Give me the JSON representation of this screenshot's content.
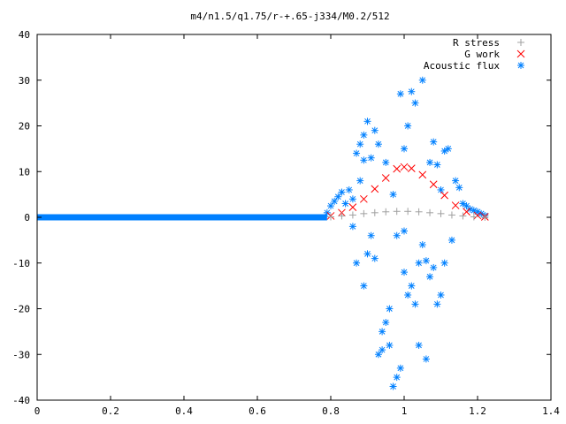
{
  "chart_data": {
    "type": "scatter",
    "title": "m4/n1.5/q1.75/r-+.65-j334/M0.2/512",
    "xlabel": "",
    "ylabel": "",
    "xlim": [
      0,
      1.4
    ],
    "ylim": [
      -40,
      40
    ],
    "x_ticks": [
      "0",
      "0.2",
      "0.4",
      "0.6",
      "0.8",
      "1",
      "1.2",
      "1.4"
    ],
    "y_ticks": [
      "40",
      "30",
      "20",
      "10",
      "0",
      "-10",
      "-20",
      "-30",
      "-40"
    ],
    "grid": false,
    "legend_position": "top-right",
    "series": [
      {
        "name": "R stress",
        "marker": "plus",
        "color": "#a0a0a0",
        "points": [
          [
            0.8,
            0.1
          ],
          [
            0.83,
            0.3
          ],
          [
            0.86,
            0.5
          ],
          [
            0.89,
            0.8
          ],
          [
            0.92,
            1.0
          ],
          [
            0.95,
            1.2
          ],
          [
            0.98,
            1.3
          ],
          [
            1.01,
            1.3
          ],
          [
            1.04,
            1.2
          ],
          [
            1.07,
            1.0
          ],
          [
            1.1,
            0.8
          ],
          [
            1.13,
            0.5
          ],
          [
            1.16,
            0.3
          ],
          [
            1.19,
            0.1
          ],
          [
            1.22,
            0.0
          ]
        ]
      },
      {
        "name": "G work",
        "marker": "cross",
        "color": "#ff0000",
        "points": [
          [
            0.8,
            0.3
          ],
          [
            0.83,
            1.0
          ],
          [
            0.86,
            2.2
          ],
          [
            0.89,
            4.0
          ],
          [
            0.92,
            6.2
          ],
          [
            0.95,
            8.6
          ],
          [
            0.98,
            10.6
          ],
          [
            1.0,
            11.0
          ],
          [
            1.02,
            10.7
          ],
          [
            1.05,
            9.3
          ],
          [
            1.08,
            7.2
          ],
          [
            1.11,
            4.8
          ],
          [
            1.14,
            2.6
          ],
          [
            1.17,
            1.2
          ],
          [
            1.2,
            0.4
          ],
          [
            1.22,
            0.1
          ]
        ]
      },
      {
        "name": "Acoustic flux",
        "marker": "star",
        "color": "#0080ff",
        "baseline_x_range": [
          0,
          0.79
        ],
        "points": [
          [
            0.79,
            1.0
          ],
          [
            0.8,
            2.5
          ],
          [
            0.81,
            3.5
          ],
          [
            0.82,
            4.5
          ],
          [
            0.83,
            5.5
          ],
          [
            0.84,
            3.0
          ],
          [
            0.85,
            6.0
          ],
          [
            0.86,
            4.0
          ],
          [
            0.86,
            -2.0
          ],
          [
            0.87,
            14.0
          ],
          [
            0.87,
            -10.0
          ],
          [
            0.88,
            16.0
          ],
          [
            0.88,
            8.0
          ],
          [
            0.89,
            -15.0
          ],
          [
            0.89,
            18.0
          ],
          [
            0.89,
            12.5
          ],
          [
            0.9,
            21.0
          ],
          [
            0.9,
            -8.0
          ],
          [
            0.91,
            13.0
          ],
          [
            0.91,
            -4.0
          ],
          [
            0.92,
            -9.0
          ],
          [
            0.92,
            19.0
          ],
          [
            0.93,
            16.0
          ],
          [
            0.93,
            -30.0
          ],
          [
            0.94,
            -25.0
          ],
          [
            0.94,
            -29.0
          ],
          [
            0.95,
            -23.0
          ],
          [
            0.95,
            12.0
          ],
          [
            0.96,
            -20.0
          ],
          [
            0.96,
            -28.0
          ],
          [
            0.97,
            -37.0
          ],
          [
            0.97,
            5.0
          ],
          [
            0.98,
            -35.0
          ],
          [
            0.98,
            -4.0
          ],
          [
            0.99,
            -33.0
          ],
          [
            0.99,
            27.0
          ],
          [
            1.0,
            -12.0
          ],
          [
            1.0,
            15.0
          ],
          [
            1.0,
            -3.0
          ],
          [
            1.01,
            -17.0
          ],
          [
            1.01,
            20.0
          ],
          [
            1.02,
            -15.0
          ],
          [
            1.02,
            27.5
          ],
          [
            1.03,
            -19.0
          ],
          [
            1.03,
            25.0
          ],
          [
            1.04,
            -28.0
          ],
          [
            1.04,
            -10.0
          ],
          [
            1.05,
            30.0
          ],
          [
            1.05,
            -6.0
          ],
          [
            1.06,
            -31.0
          ],
          [
            1.06,
            -9.5
          ],
          [
            1.07,
            -13.0
          ],
          [
            1.07,
            12.0
          ],
          [
            1.08,
            -11.0
          ],
          [
            1.08,
            16.5
          ],
          [
            1.09,
            -19.0
          ],
          [
            1.09,
            11.5
          ],
          [
            1.1,
            -17.0
          ],
          [
            1.1,
            6.0
          ],
          [
            1.11,
            -10.0
          ],
          [
            1.11,
            14.5
          ],
          [
            1.12,
            15.0
          ],
          [
            1.13,
            -5.0
          ],
          [
            1.14,
            8.0
          ],
          [
            1.15,
            6.5
          ],
          [
            1.16,
            3.0
          ],
          [
            1.17,
            2.5
          ],
          [
            1.18,
            1.8
          ],
          [
            1.19,
            1.5
          ],
          [
            1.2,
            1.2
          ],
          [
            1.21,
            0.8
          ],
          [
            1.22,
            0.4
          ]
        ]
      }
    ]
  }
}
